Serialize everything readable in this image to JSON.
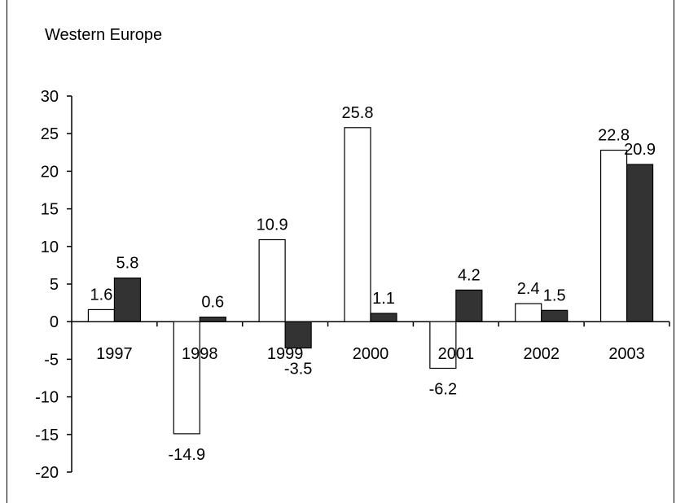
{
  "chart_data": {
    "type": "bar",
    "title": "Western Europe",
    "categories": [
      "1997",
      "1998",
      "1999",
      "2000",
      "2001",
      "2002",
      "2003"
    ],
    "series": [
      {
        "values": [
          1.6,
          -14.9,
          10.9,
          25.8,
          -6.2,
          2.4,
          22.8
        ],
        "color": "#ffffff",
        "labels": [
          "1.6",
          "-14.9",
          "10.9",
          "25.8",
          "-6.2",
          "2.4",
          "22.8"
        ]
      },
      {
        "values": [
          5.8,
          0.6,
          -3.5,
          1.1,
          4.2,
          1.5,
          20.9
        ],
        "color": "#333333",
        "labels": [
          "5.8",
          "0.6",
          "-3.5",
          "1.1",
          "4.2",
          "1.5",
          "20.9"
        ]
      }
    ],
    "ylim": [
      -20,
      30
    ],
    "yticks": [
      30,
      25,
      20,
      15,
      10,
      5,
      0,
      -5,
      -10,
      -15,
      -20
    ],
    "ytick_labels": [
      "30",
      "25",
      "20",
      "15",
      "10",
      "5",
      "0",
      "-5",
      "-10",
      "-15",
      "-20"
    ],
    "grid": false,
    "legend": "none",
    "xlabel": "",
    "ylabel": ""
  }
}
